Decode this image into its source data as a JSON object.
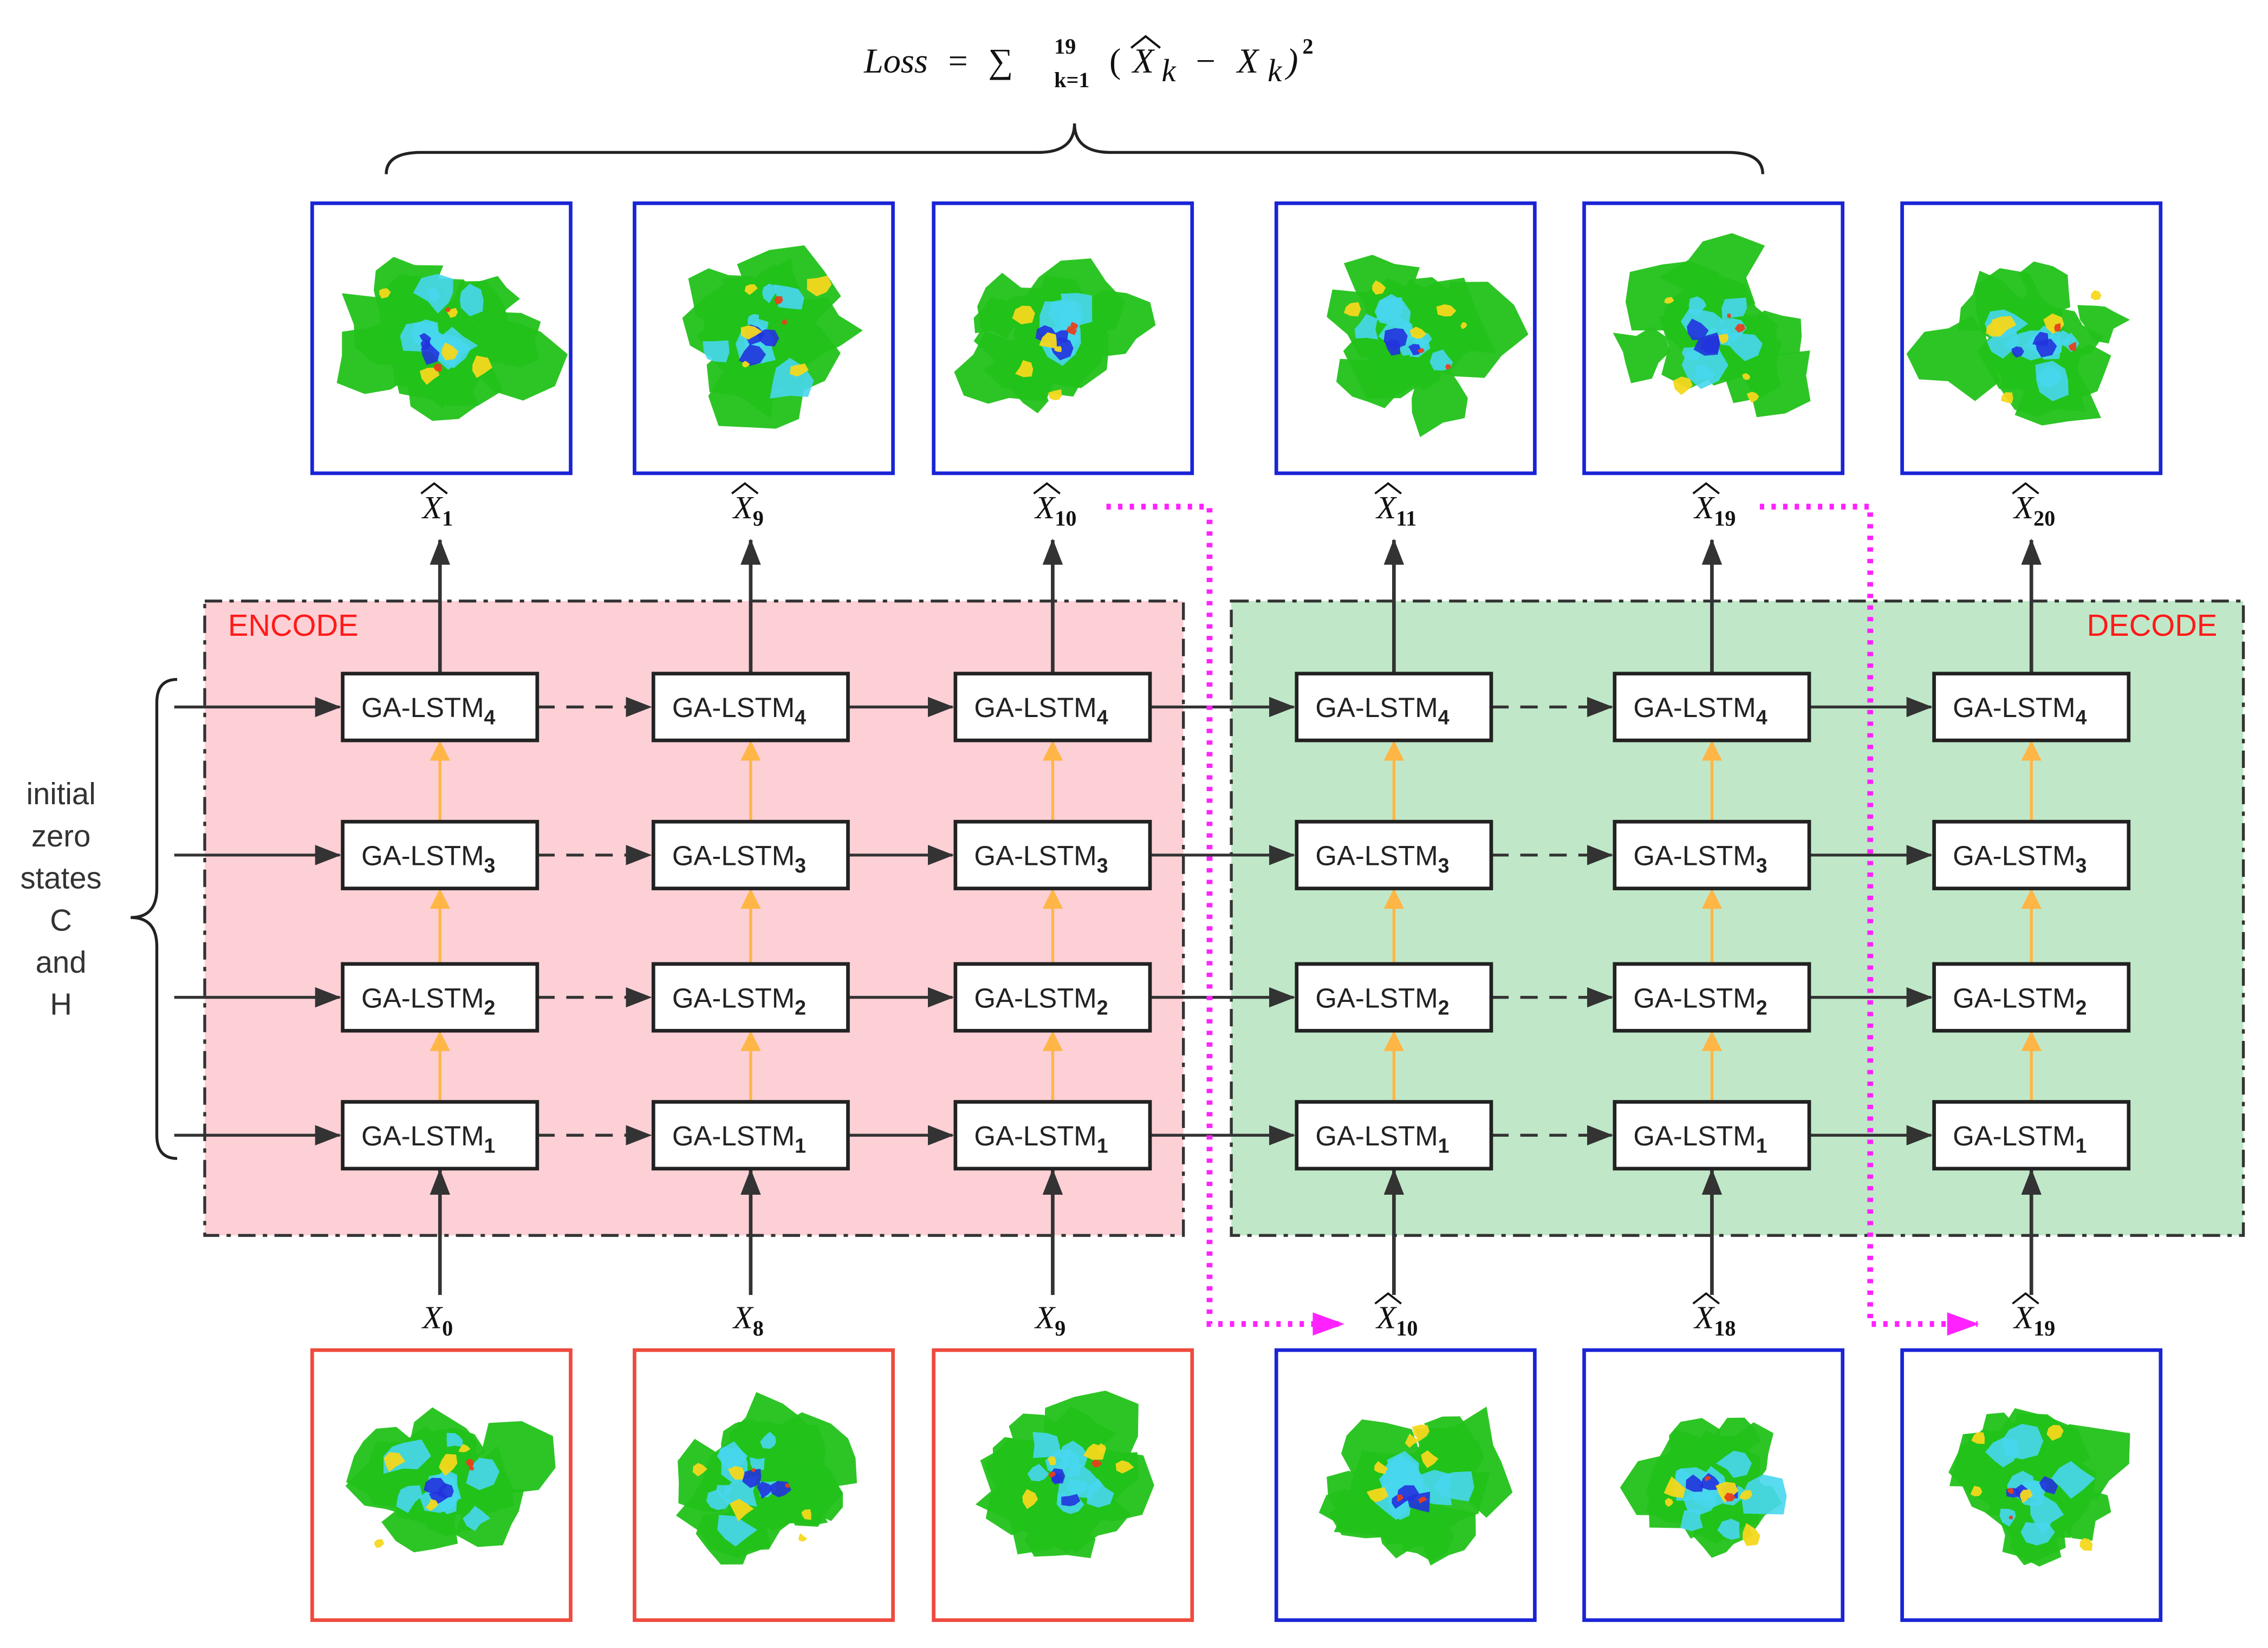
{
  "loss": {
    "lhs": "Loss",
    "eq": "=",
    "sum": "∑",
    "upper": "19",
    "lower": "k=1",
    "body_open": "(",
    "xhat": "X",
    "sub_k": "k",
    "minus": "−",
    "body_close": ")",
    "power": "2"
  },
  "regions": {
    "encode_label": "ENCODE",
    "decode_label": "DECODE"
  },
  "side_label": [
    "initial",
    "zero",
    "states",
    "C",
    "and",
    "H"
  ],
  "cell_base": "GA-LSTM",
  "layer_indices": [
    "4",
    "3",
    "2",
    "1"
  ],
  "outputs": [
    {
      "symbol": "X",
      "hat": true,
      "sub": "1"
    },
    {
      "symbol": "X",
      "hat": true,
      "sub": "9"
    },
    {
      "symbol": "X",
      "hat": true,
      "sub": "10"
    },
    {
      "symbol": "X",
      "hat": true,
      "sub": "11"
    },
    {
      "symbol": "X",
      "hat": true,
      "sub": "19"
    },
    {
      "symbol": "X",
      "hat": true,
      "sub": "20"
    }
  ],
  "inputs": [
    {
      "symbol": "X",
      "hat": false,
      "sub": "0"
    },
    {
      "symbol": "X",
      "hat": false,
      "sub": "8"
    },
    {
      "symbol": "X",
      "hat": false,
      "sub": "9"
    },
    {
      "symbol": "X",
      "hat": true,
      "sub": "10"
    },
    {
      "symbol": "X",
      "hat": true,
      "sub": "18"
    },
    {
      "symbol": "X",
      "hat": true,
      "sub": "19"
    }
  ],
  "colors": {
    "encode_fill": "#fdd0d6",
    "decode_fill": "#c0e8c8",
    "arrow_dark": "#333333",
    "arrow_orange": "#ffb646",
    "feedback": "#ff22ff",
    "frame_blue": "#1a24d6",
    "frame_red": "#ef4a3e",
    "radar_green": "#22c21a",
    "radar_cyan": "#47d7ee",
    "radar_blue": "#2233dd",
    "radar_yellow": "#f4d81c",
    "radar_red": "#e8401c"
  }
}
